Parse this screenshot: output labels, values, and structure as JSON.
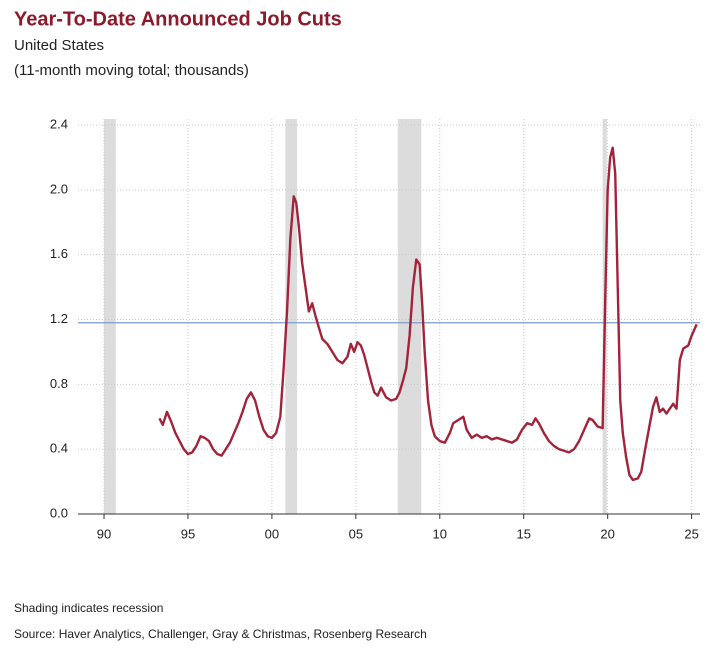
{
  "chart_data": {
    "type": "line",
    "title": "Year-To-Date Announced Job Cuts",
    "subtitle": "United States",
    "units": "(11-month moving total; thousands)",
    "notes": [
      "Shading indicates recession",
      "Source: Haver Analytics, Challenger, Gray & Christmas, Rosenberg Research"
    ],
    "xlim": [
      1988.45,
      2025.5
    ],
    "xticks": [
      {
        "value": 1990,
        "label": "90"
      },
      {
        "value": 1995,
        "label": "95"
      },
      {
        "value": 2000,
        "label": "00"
      },
      {
        "value": 2005,
        "label": "05"
      },
      {
        "value": 2010,
        "label": "10"
      },
      {
        "value": 2015,
        "label": "15"
      },
      {
        "value": 2020,
        "label": "20"
      },
      {
        "value": 2025,
        "label": "25"
      }
    ],
    "ylim": [
      0,
      2.4
    ],
    "yticks": [
      {
        "value": 0,
        "label": "0.0"
      },
      0.4,
      0.8,
      1.2,
      1.6,
      {
        "value": 2,
        "label": "2.0"
      },
      2.4
    ],
    "grid": true,
    "recessions": [
      [
        1990.0,
        1990.7
      ],
      [
        2000.8,
        2001.5
      ],
      [
        2007.5,
        2008.9
      ],
      [
        2019.7,
        2019.95
      ]
    ],
    "recession_color": "#dcdcdc",
    "reference_line": 1.18,
    "reference_color": "#7f9cc8",
    "x": [
      1993.3,
      1993.5,
      1993.75,
      1994.0,
      1994.25,
      1994.5,
      1994.75,
      1995.0,
      1995.25,
      1995.5,
      1995.75,
      1996.0,
      1996.25,
      1996.5,
      1996.75,
      1997.0,
      1997.25,
      1997.5,
      1997.75,
      1998.0,
      1998.25,
      1998.5,
      1998.75,
      1999.0,
      1999.25,
      1999.5,
      1999.75,
      2000.0,
      2000.25,
      2000.5,
      2000.7,
      2000.9,
      2001.1,
      2001.3,
      2001.45,
      2001.6,
      2001.8,
      2002.0,
      2002.2,
      2002.4,
      2002.6,
      2002.8,
      2003.0,
      2003.3,
      2003.6,
      2003.9,
      2004.2,
      2004.5,
      2004.7,
      2004.9,
      2005.1,
      2005.3,
      2005.5,
      2005.7,
      2005.9,
      2006.1,
      2006.3,
      2006.5,
      2006.8,
      2007.1,
      2007.4,
      2007.6,
      2007.8,
      2008.0,
      2008.2,
      2008.4,
      2008.6,
      2008.8,
      2008.95,
      2009.1,
      2009.3,
      2009.5,
      2009.7,
      2010.0,
      2010.3,
      2010.6,
      2010.8,
      2011.1,
      2011.4,
      2011.6,
      2011.9,
      2012.2,
      2012.5,
      2012.8,
      2013.1,
      2013.4,
      2013.7,
      2014.0,
      2014.3,
      2014.6,
      2014.9,
      2015.2,
      2015.5,
      2015.7,
      2015.9,
      2016.2,
      2016.5,
      2016.8,
      2017.1,
      2017.4,
      2017.7,
      2018.0,
      2018.3,
      2018.6,
      2018.9,
      2019.1,
      2019.4,
      2019.7,
      2019.85,
      2020.0,
      2020.15,
      2020.3,
      2020.45,
      2020.6,
      2020.75,
      2020.9,
      2021.1,
      2021.3,
      2021.5,
      2021.8,
      2022.0,
      2022.2,
      2022.5,
      2022.7,
      2022.9,
      2023.1,
      2023.3,
      2023.5,
      2023.7,
      2023.9,
      2024.1,
      2024.3,
      2024.5,
      2024.8,
      2025.0,
      2025.3
    ],
    "series": [
      {
        "color": "#a3233a",
        "values": [
          0.59,
          0.55,
          0.63,
          0.57,
          0.5,
          0.45,
          0.4,
          0.37,
          0.38,
          0.42,
          0.48,
          0.47,
          0.45,
          0.4,
          0.37,
          0.36,
          0.4,
          0.44,
          0.5,
          0.56,
          0.63,
          0.71,
          0.75,
          0.7,
          0.6,
          0.52,
          0.48,
          0.47,
          0.5,
          0.6,
          0.9,
          1.25,
          1.7,
          1.96,
          1.92,
          1.78,
          1.55,
          1.4,
          1.25,
          1.3,
          1.22,
          1.15,
          1.08,
          1.05,
          1.0,
          0.95,
          0.93,
          0.97,
          1.05,
          1.0,
          1.06,
          1.04,
          0.98,
          0.9,
          0.82,
          0.75,
          0.73,
          0.78,
          0.72,
          0.7,
          0.71,
          0.75,
          0.82,
          0.9,
          1.1,
          1.4,
          1.57,
          1.54,
          1.3,
          1.0,
          0.7,
          0.55,
          0.48,
          0.45,
          0.44,
          0.5,
          0.56,
          0.58,
          0.6,
          0.52,
          0.47,
          0.49,
          0.47,
          0.48,
          0.46,
          0.47,
          0.46,
          0.45,
          0.44,
          0.46,
          0.52,
          0.56,
          0.55,
          0.59,
          0.56,
          0.5,
          0.45,
          0.42,
          0.4,
          0.39,
          0.38,
          0.4,
          0.45,
          0.52,
          0.59,
          0.58,
          0.54,
          0.53,
          1.3,
          2.0,
          2.2,
          2.26,
          2.1,
          1.4,
          0.7,
          0.5,
          0.35,
          0.24,
          0.21,
          0.22,
          0.26,
          0.38,
          0.55,
          0.66,
          0.72,
          0.63,
          0.65,
          0.62,
          0.65,
          0.68,
          0.65,
          0.95,
          1.02,
          1.04,
          1.1,
          1.17
        ]
      }
    ]
  }
}
